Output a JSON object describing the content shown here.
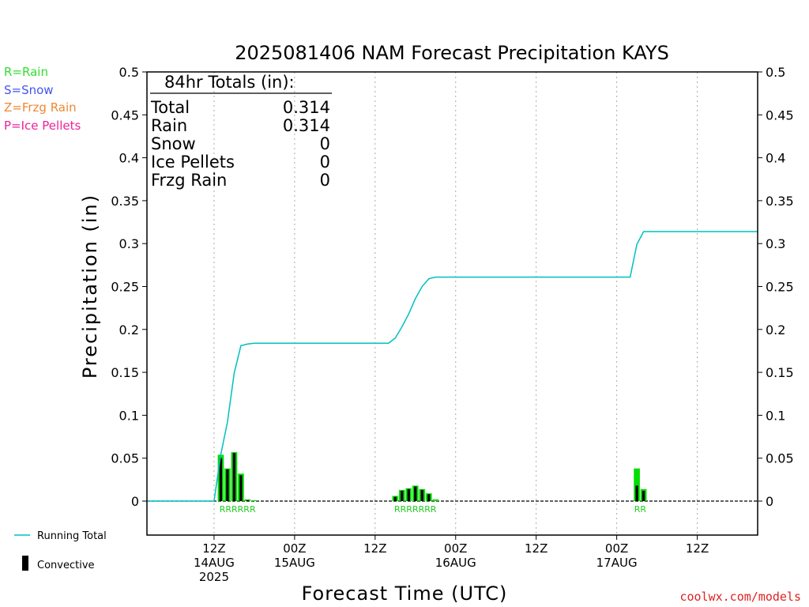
{
  "chart_data": {
    "type": "bar",
    "title": "2025081406 NAM Forecast Precipitation KAYS",
    "xlabel": "Forecast Time (UTC)",
    "ylabel": "Precipitation (in)",
    "ylim": [
      0,
      0.5
    ],
    "yticks": [
      0,
      0.05,
      0.1,
      0.15,
      0.2,
      0.25,
      0.3,
      0.35,
      0.4,
      0.45,
      0.5
    ],
    "ytick_labels": [
      "0",
      "0.05",
      "0.1",
      "0.15",
      "0.2",
      "0.25",
      "0.3",
      "0.35",
      "0.4",
      "0.45",
      "0.5"
    ],
    "x_unit": "forecast hour",
    "xlim": [
      -4,
      87
    ],
    "xticks": [
      {
        "hour": 6,
        "label1": "12Z",
        "label2": "14AUG",
        "label3": "2025"
      },
      {
        "hour": 18,
        "label1": "00Z",
        "label2": "15AUG",
        "label3": ""
      },
      {
        "hour": 30,
        "label1": "12Z",
        "label2": "",
        "label3": ""
      },
      {
        "hour": 42,
        "label1": "00Z",
        "label2": "16AUG",
        "label3": ""
      },
      {
        "hour": 54,
        "label1": "12Z",
        "label2": "",
        "label3": ""
      },
      {
        "hour": 66,
        "label1": "00Z",
        "label2": "17AUG",
        "label3": ""
      },
      {
        "hour": 78,
        "label1": "12Z",
        "label2": "",
        "label3": ""
      }
    ],
    "grid": true,
    "legend": [
      {
        "label": "Running Total",
        "color": "#00c0c0",
        "kind": "line"
      },
      {
        "label": "Convective",
        "color": "#000000",
        "kind": "bar"
      }
    ],
    "type_legend": [
      {
        "label": "R=Rain",
        "color": "#33dd33"
      },
      {
        "label": "S=Snow",
        "color": "#4455ee"
      },
      {
        "label": "Z=Frzg Rain",
        "color": "#ee8833"
      },
      {
        "label": "P=Ice Pellets",
        "color": "#ee2299"
      }
    ],
    "totals": {
      "heading": "84hr Totals (in):",
      "rows": [
        {
          "label": "Total",
          "value": "0.314"
        },
        {
          "label": "Rain",
          "value": "0.314"
        },
        {
          "label": "Snow",
          "value": "0"
        },
        {
          "label": "Ice Pellets",
          "value": "0"
        },
        {
          "label": "Frzg Rain",
          "value": "0"
        }
      ]
    },
    "bar_width_hours": 0.9,
    "series": [
      {
        "name": "Rain",
        "color": "#00dd00",
        "points": [
          {
            "x": 7,
            "value": 0.054
          },
          {
            "x": 8,
            "value": 0.038
          },
          {
            "x": 9,
            "value": 0.057
          },
          {
            "x": 10,
            "value": 0.032
          },
          {
            "x": 11,
            "value": 0.002
          },
          {
            "x": 12,
            "value": 0.001
          },
          {
            "x": 33,
            "value": 0.006
          },
          {
            "x": 34,
            "value": 0.013
          },
          {
            "x": 35,
            "value": 0.015
          },
          {
            "x": 36,
            "value": 0.018
          },
          {
            "x": 37,
            "value": 0.014
          },
          {
            "x": 38,
            "value": 0.009
          },
          {
            "x": 39,
            "value": 0.002
          },
          {
            "x": 69,
            "value": 0.038
          },
          {
            "x": 70,
            "value": 0.014
          }
        ]
      },
      {
        "name": "Convective",
        "color": "#000000",
        "points": [
          {
            "x": 7,
            "value": 0.05
          },
          {
            "x": 8,
            "value": 0.037
          },
          {
            "x": 9,
            "value": 0.056
          },
          {
            "x": 10,
            "value": 0.03
          },
          {
            "x": 11,
            "value": 0.001
          },
          {
            "x": 33,
            "value": 0.005
          },
          {
            "x": 34,
            "value": 0.012
          },
          {
            "x": 35,
            "value": 0.014
          },
          {
            "x": 36,
            "value": 0.017
          },
          {
            "x": 37,
            "value": 0.013
          },
          {
            "x": 38,
            "value": 0.008
          },
          {
            "x": 69,
            "value": 0.018
          },
          {
            "x": 70,
            "value": 0.012
          }
        ]
      },
      {
        "name": "Running Total",
        "color": "#00c0c0",
        "points": [
          {
            "x": -4,
            "value": 0
          },
          {
            "x": 6,
            "value": 0
          },
          {
            "x": 7,
            "value": 0.054
          },
          {
            "x": 8,
            "value": 0.092
          },
          {
            "x": 9,
            "value": 0.149
          },
          {
            "x": 10,
            "value": 0.181
          },
          {
            "x": 11,
            "value": 0.183
          },
          {
            "x": 12,
            "value": 0.184
          },
          {
            "x": 32,
            "value": 0.184
          },
          {
            "x": 33,
            "value": 0.19
          },
          {
            "x": 34,
            "value": 0.203
          },
          {
            "x": 35,
            "value": 0.218
          },
          {
            "x": 36,
            "value": 0.236
          },
          {
            "x": 37,
            "value": 0.25
          },
          {
            "x": 38,
            "value": 0.259
          },
          {
            "x": 39,
            "value": 0.261
          },
          {
            "x": 68,
            "value": 0.261
          },
          {
            "x": 69,
            "value": 0.299
          },
          {
            "x": 70,
            "value": 0.314
          },
          {
            "x": 87,
            "value": 0.314
          }
        ]
      }
    ],
    "type_markers": [
      {
        "x_start": 7,
        "x_end": 12,
        "text": "RRRRRR"
      },
      {
        "x_start": 33,
        "x_end": 39,
        "text": "RRRRRRR"
      },
      {
        "x_start": 69,
        "x_end": 70,
        "text": "RR"
      }
    ]
  },
  "credit": "coolwx.com/models"
}
